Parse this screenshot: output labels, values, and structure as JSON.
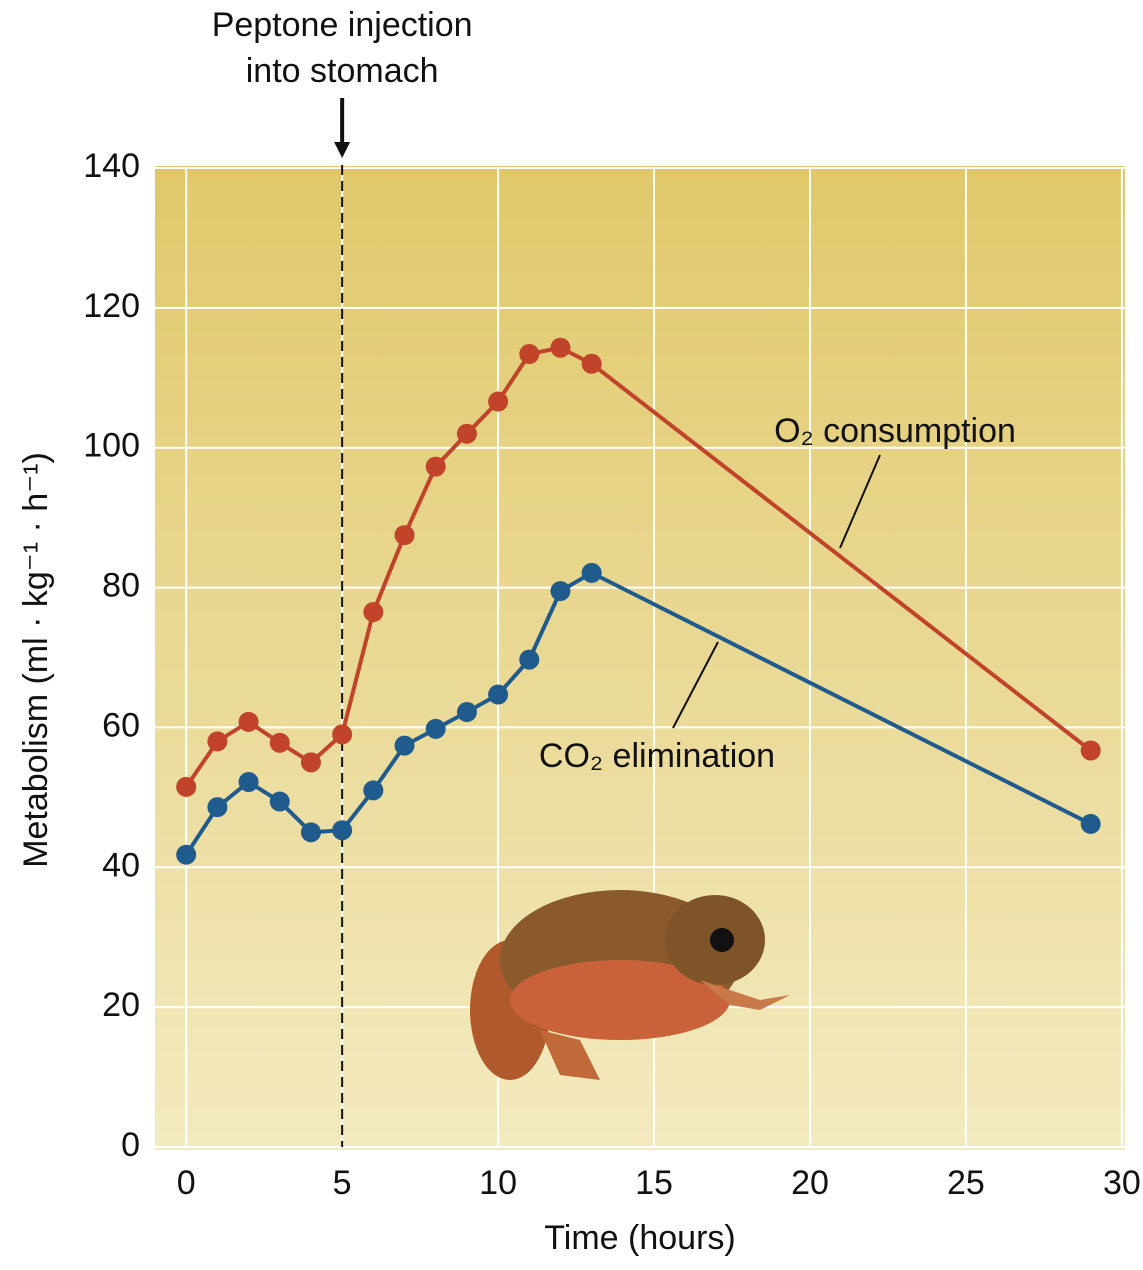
{
  "chart_data": {
    "type": "line",
    "annotations": [
      {
        "lines": [
          "Peptone injection",
          "into stomach"
        ],
        "x": 5
      }
    ],
    "xlabel": "Time (hours)",
    "ylabel": "Metabolism (ml · kg⁻¹ · h⁻¹)",
    "x": [
      0,
      1,
      2,
      3,
      4,
      5,
      6,
      7,
      8,
      9,
      10,
      11,
      12,
      13,
      29
    ],
    "series": [
      {
        "name": "O₂ consumption",
        "color": "#c0432a",
        "values": [
          51.5,
          58,
          60.8,
          57.8,
          55,
          59,
          76.5,
          87.5,
          97.3,
          102,
          106.6,
          113.4,
          114.3,
          112,
          56.7
        ]
      },
      {
        "name": "CO₂ elimination",
        "color": "#1f5b8c",
        "values": [
          41.8,
          48.6,
          52.2,
          49.4,
          45,
          45.3,
          51,
          57.4,
          59.8,
          62.2,
          64.7,
          69.7,
          79.5,
          82.1,
          46.2
        ]
      }
    ],
    "xlim": [
      -1,
      30.1
    ],
    "ylim": [
      0,
      140
    ],
    "xticks": [
      0,
      5,
      10,
      15,
      20,
      25,
      30
    ],
    "yticks": [
      0,
      20,
      40,
      60,
      80,
      100,
      120,
      140
    ],
    "grid": true
  }
}
